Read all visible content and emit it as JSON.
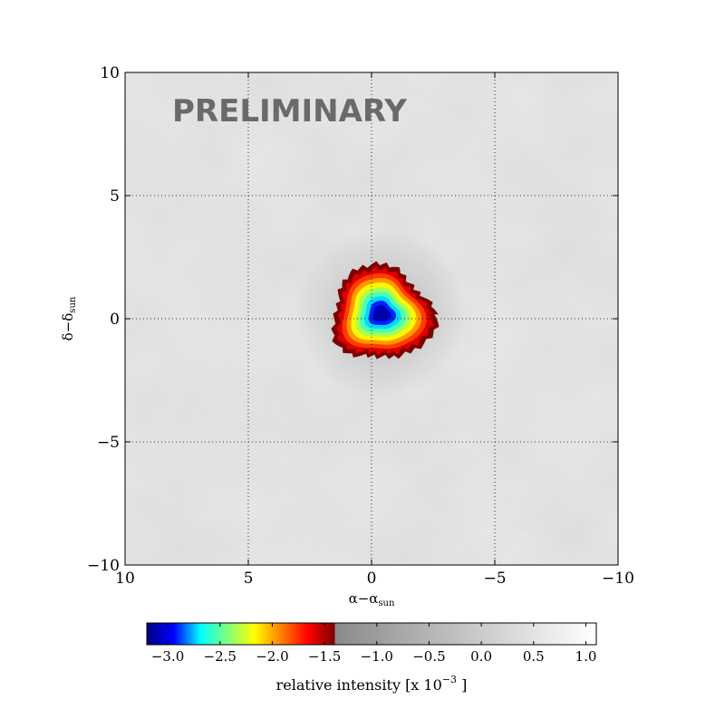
{
  "chart_data": {
    "type": "heatmap",
    "title": "",
    "watermark": "PRELIMINARY",
    "xlabel": "α−α",
    "xlabel_sub": "sun",
    "ylabel": "δ−δ",
    "ylabel_sub": "sun",
    "xlim": [
      10,
      -10
    ],
    "ylim": [
      -10,
      10
    ],
    "x_ticks": [
      10,
      5,
      0,
      -5,
      -10
    ],
    "x_tick_labels": [
      "10",
      "5",
      "0",
      "−5",
      "−10"
    ],
    "y_ticks": [
      10,
      5,
      0,
      -5,
      -10
    ],
    "y_tick_labels": [
      "10",
      "5",
      "0",
      "−5",
      "−10"
    ],
    "grid": true,
    "colorbar": {
      "label": "relative intensity [x 10",
      "label_exp": "−3",
      "label_end": "]",
      "range": [
        -3.2,
        1.1
      ],
      "split_value": -1.4,
      "ticks": [
        -3.0,
        -2.5,
        -2.0,
        -1.5,
        -1.0,
        -0.5,
        0.0,
        0.5,
        1.0
      ],
      "tick_labels": [
        "−3.0",
        "−2.5",
        "−2.0",
        "−1.5",
        "−1.0",
        "−0.5",
        "0.0",
        "0.5",
        "1.0"
      ]
    },
    "deficit": {
      "center": [
        -0.4,
        0.2
      ],
      "min_value": -3.1,
      "threshold": -1.4,
      "extent_x": [
        -2.7,
        1.1
      ],
      "extent_y": [
        -1.9,
        2.5
      ]
    },
    "colors": {
      "jet": [
        "#00007f",
        "#0000ff",
        "#00ffff",
        "#7fff7f",
        "#ffff00",
        "#ff7f00",
        "#ff0000",
        "#7f0000"
      ],
      "gray_low": "#8a8a8a",
      "gray_high": "#ffffff",
      "background_gray": "#d9d9d9"
    }
  }
}
